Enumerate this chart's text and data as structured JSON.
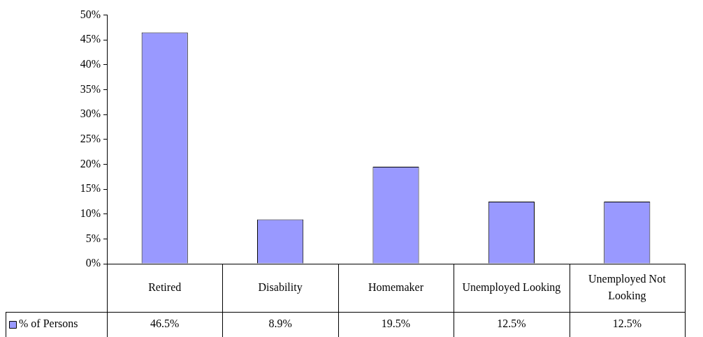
{
  "chart_data": {
    "type": "bar",
    "categories": [
      "Retired",
      "Disability",
      "Homemaker",
      "Unemployed Looking",
      "Unemployed Not Looking"
    ],
    "series": [
      {
        "name": "% of Persons",
        "color": "#9999ff",
        "values": [
          46.5,
          8.9,
          19.5,
          12.5,
          12.5
        ],
        "value_labels": [
          "46.5%",
          "8.9%",
          "19.5%",
          "12.5%",
          "12.5%"
        ]
      }
    ],
    "ylim": [
      0,
      50
    ],
    "yticks": [
      {
        "value": 0,
        "label": "0%"
      },
      {
        "value": 5,
        "label": "5%"
      },
      {
        "value": 10,
        "label": "10%"
      },
      {
        "value": 15,
        "label": "15%"
      },
      {
        "value": 20,
        "label": "20%"
      },
      {
        "value": 25,
        "label": "25%"
      },
      {
        "value": 30,
        "label": "30%"
      },
      {
        "value": 35,
        "label": "35%"
      },
      {
        "value": 40,
        "label": "40%"
      },
      {
        "value": 45,
        "label": "45%"
      },
      {
        "value": 50,
        "label": "50%"
      }
    ],
    "grid": false,
    "legend": "bottom"
  }
}
